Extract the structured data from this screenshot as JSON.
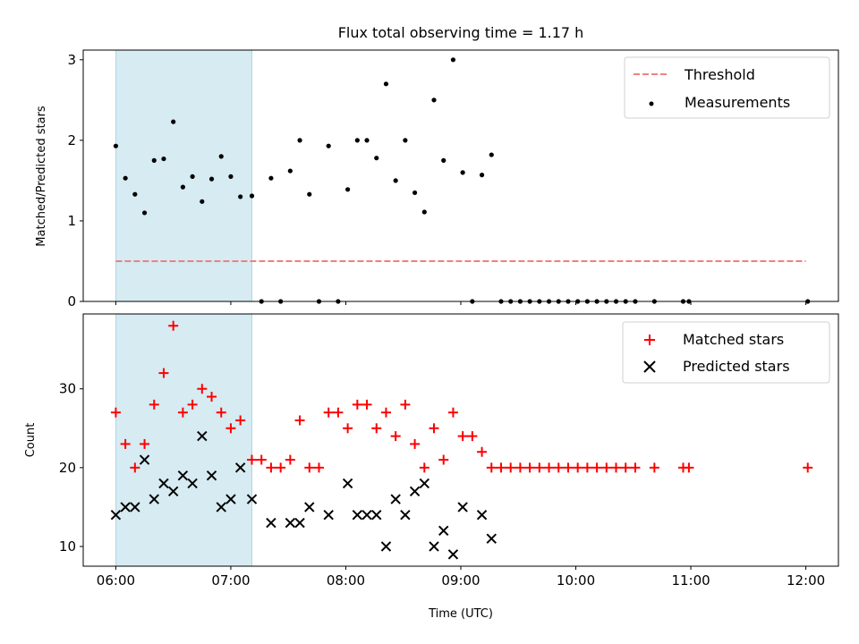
{
  "chart_data": [
    {
      "type": "scatter",
      "title": "Flux total observing time = 1.17 h",
      "ylabel": "Matched/Predicted stars",
      "xlabel": "",
      "xaxis": "time",
      "xlim": [
        "05:43",
        "12:17"
      ],
      "ylim": [
        0,
        3.12
      ],
      "yticks": [
        0,
        1,
        2,
        3
      ],
      "xtick_labels": [],
      "legend_position": "upper right",
      "shaded_span": {
        "x0": "06:00",
        "x1": "07:11",
        "color": "#add8e6"
      },
      "threshold": {
        "name": "Threshold",
        "y": 0.5,
        "x": [
          "06:00",
          "12:00"
        ],
        "color": "#f08080",
        "style": "dashed"
      },
      "series": [
        {
          "name": "Measurements",
          "marker": "dot",
          "color": "#000000",
          "points": [
            [
              "06:00",
              1.93
            ],
            [
              "06:05",
              1.53
            ],
            [
              "06:10",
              1.33
            ],
            [
              "06:15",
              1.1
            ],
            [
              "06:20",
              1.75
            ],
            [
              "06:25",
              1.77
            ],
            [
              "06:30",
              2.23
            ],
            [
              "06:35",
              1.42
            ],
            [
              "06:40",
              1.55
            ],
            [
              "06:45",
              1.24
            ],
            [
              "06:50",
              1.52
            ],
            [
              "06:55",
              1.8
            ],
            [
              "07:00",
              1.55
            ],
            [
              "07:05",
              1.3
            ],
            [
              "07:11",
              1.31
            ],
            [
              "07:16",
              0.0
            ],
            [
              "07:21",
              1.53
            ],
            [
              "07:26",
              0.0
            ],
            [
              "07:31",
              1.62
            ],
            [
              "07:36",
              2.0
            ],
            [
              "07:41",
              1.33
            ],
            [
              "07:46",
              0.0
            ],
            [
              "07:51",
              1.93
            ],
            [
              "07:56",
              0.0
            ],
            [
              "08:01",
              1.39
            ],
            [
              "08:06",
              2.0
            ],
            [
              "08:11",
              2.0
            ],
            [
              "08:16",
              1.78
            ],
            [
              "08:21",
              2.7
            ],
            [
              "08:26",
              1.5
            ],
            [
              "08:31",
              2.0
            ],
            [
              "08:36",
              1.35
            ],
            [
              "08:41",
              1.11
            ],
            [
              "08:46",
              2.5
            ],
            [
              "08:51",
              1.75
            ],
            [
              "08:56",
              3.0
            ],
            [
              "09:01",
              1.6
            ],
            [
              "09:06",
              0.0
            ],
            [
              "09:11",
              1.57
            ],
            [
              "09:16",
              1.82
            ],
            [
              "09:21",
              0.0
            ],
            [
              "09:26",
              0.0
            ],
            [
              "09:31",
              0.0
            ],
            [
              "09:36",
              0.0
            ],
            [
              "09:41",
              0.0
            ],
            [
              "09:46",
              0.0
            ],
            [
              "09:51",
              0.0
            ],
            [
              "09:56",
              0.0
            ],
            [
              "10:01",
              0.0
            ],
            [
              "10:06",
              0.0
            ],
            [
              "10:11",
              0.0
            ],
            [
              "10:16",
              0.0
            ],
            [
              "10:21",
              0.0
            ],
            [
              "10:26",
              0.0
            ],
            [
              "10:31",
              0.0
            ],
            [
              "10:41",
              0.0
            ],
            [
              "10:56",
              0.0
            ],
            [
              "10:59",
              0.0
            ],
            [
              "12:01",
              0.0
            ]
          ]
        }
      ]
    },
    {
      "type": "scatter",
      "title": "",
      "xlabel": "Time (UTC)",
      "ylabel": "Count",
      "xaxis": "time",
      "xlim": [
        "05:43",
        "12:17"
      ],
      "ylim": [
        7.5,
        39.5
      ],
      "yticks": [
        10,
        20,
        30
      ],
      "xtick_labels": [
        "06:00",
        "07:00",
        "08:00",
        "09:00",
        "10:00",
        "11:00",
        "12:00"
      ],
      "legend_position": "upper right",
      "shaded_span": {
        "x0": "06:00",
        "x1": "07:11",
        "color": "#add8e6"
      },
      "series": [
        {
          "name": "Matched stars",
          "marker": "plus",
          "color": "#ff0000",
          "points": [
            [
              "06:00",
              27
            ],
            [
              "06:05",
              23
            ],
            [
              "06:10",
              20
            ],
            [
              "06:15",
              23
            ],
            [
              "06:20",
              28
            ],
            [
              "06:25",
              32
            ],
            [
              "06:30",
              38
            ],
            [
              "06:35",
              27
            ],
            [
              "06:40",
              28
            ],
            [
              "06:45",
              30
            ],
            [
              "06:50",
              29
            ],
            [
              "06:55",
              27
            ],
            [
              "07:00",
              25
            ],
            [
              "07:05",
              26
            ],
            [
              "07:11",
              21
            ],
            [
              "07:16",
              21
            ],
            [
              "07:21",
              20
            ],
            [
              "07:26",
              20
            ],
            [
              "07:31",
              21
            ],
            [
              "07:36",
              26
            ],
            [
              "07:41",
              20
            ],
            [
              "07:46",
              20
            ],
            [
              "07:51",
              27
            ],
            [
              "07:56",
              27
            ],
            [
              "08:01",
              25
            ],
            [
              "08:06",
              28
            ],
            [
              "08:11",
              28
            ],
            [
              "08:16",
              25
            ],
            [
              "08:21",
              27
            ],
            [
              "08:26",
              24
            ],
            [
              "08:31",
              28
            ],
            [
              "08:36",
              23
            ],
            [
              "08:41",
              20
            ],
            [
              "08:46",
              25
            ],
            [
              "08:51",
              21
            ],
            [
              "08:56",
              27
            ],
            [
              "09:01",
              24
            ],
            [
              "09:06",
              24
            ],
            [
              "09:11",
              22
            ],
            [
              "09:16",
              20
            ],
            [
              "09:21",
              20
            ],
            [
              "09:26",
              20
            ],
            [
              "09:31",
              20
            ],
            [
              "09:36",
              20
            ],
            [
              "09:41",
              20
            ],
            [
              "09:46",
              20
            ],
            [
              "09:51",
              20
            ],
            [
              "09:56",
              20
            ],
            [
              "10:01",
              20
            ],
            [
              "10:06",
              20
            ],
            [
              "10:11",
              20
            ],
            [
              "10:16",
              20
            ],
            [
              "10:21",
              20
            ],
            [
              "10:26",
              20
            ],
            [
              "10:31",
              20
            ],
            [
              "10:41",
              20
            ],
            [
              "10:56",
              20
            ],
            [
              "10:59",
              20
            ],
            [
              "12:01",
              20
            ]
          ]
        },
        {
          "name": "Predicted stars",
          "marker": "x",
          "color": "#000000",
          "points": [
            [
              "06:00",
              14
            ],
            [
              "06:05",
              15
            ],
            [
              "06:10",
              15
            ],
            [
              "06:15",
              21
            ],
            [
              "06:20",
              16
            ],
            [
              "06:25",
              18
            ],
            [
              "06:30",
              17
            ],
            [
              "06:35",
              19
            ],
            [
              "06:40",
              18
            ],
            [
              "06:45",
              24
            ],
            [
              "06:50",
              19
            ],
            [
              "06:55",
              15
            ],
            [
              "07:00",
              16
            ],
            [
              "07:05",
              20
            ],
            [
              "07:11",
              16
            ],
            [
              "07:21",
              13
            ],
            [
              "07:31",
              13
            ],
            [
              "07:36",
              13
            ],
            [
              "07:41",
              15
            ],
            [
              "07:51",
              14
            ],
            [
              "08:01",
              18
            ],
            [
              "08:06",
              14
            ],
            [
              "08:11",
              14
            ],
            [
              "08:16",
              14
            ],
            [
              "08:21",
              10
            ],
            [
              "08:26",
              16
            ],
            [
              "08:31",
              14
            ],
            [
              "08:36",
              17
            ],
            [
              "08:41",
              18
            ],
            [
              "08:46",
              10
            ],
            [
              "08:51",
              12
            ],
            [
              "08:56",
              9
            ],
            [
              "09:01",
              15
            ],
            [
              "09:11",
              14
            ],
            [
              "09:16",
              11
            ]
          ]
        }
      ]
    }
  ]
}
